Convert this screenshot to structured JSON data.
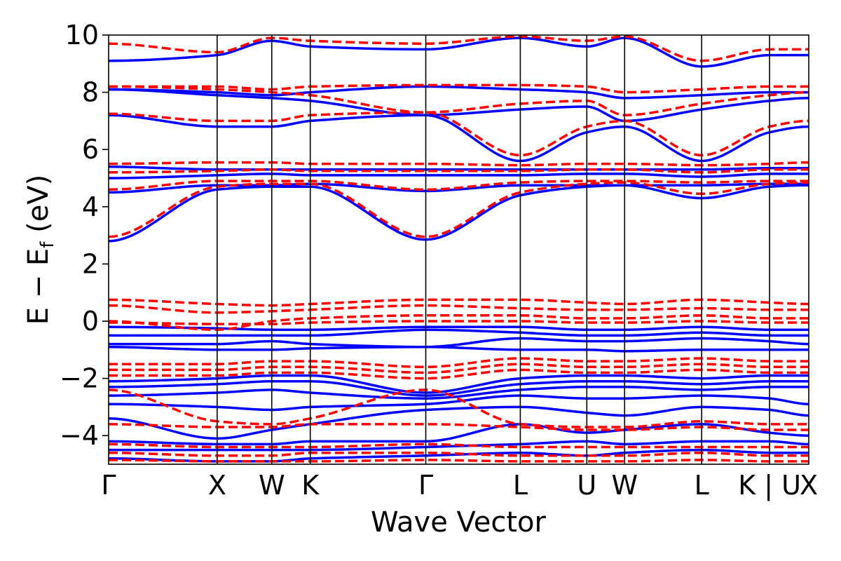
{
  "chart_data": {
    "type": "line",
    "title": "",
    "xlabel": "Wave Vector",
    "ylabel": "E − E",
    "ylabel_subscript": "f",
    "ylabel_unit": " (eV)",
    "ylim": [
      -5,
      10
    ],
    "y_ticks": [
      -4,
      -2,
      0,
      2,
      4,
      6,
      8,
      10
    ],
    "y_tick_labels": [
      "−4",
      "−2",
      "0",
      "2",
      "4",
      "6",
      "8",
      "10"
    ],
    "x_ticks": [
      {
        "label": "Γ",
        "x": 0.0
      },
      {
        "label": "X",
        "x": 0.155
      },
      {
        "label": "W",
        "x": 0.233
      },
      {
        "label": "K",
        "x": 0.288
      },
      {
        "label": "Γ",
        "x": 0.453
      },
      {
        "label": "L",
        "x": 0.588
      },
      {
        "label": "U",
        "x": 0.683
      },
      {
        "label": "W",
        "x": 0.737
      },
      {
        "label": "L",
        "x": 0.847
      },
      {
        "label": "K | U",
        "x": 0.944
      },
      {
        "label": "X",
        "x": 1.0
      }
    ],
    "series": [
      {
        "style": "solid",
        "color": "#0000ff",
        "bands": [
          [
            2.8,
            4.6,
            4.7,
            4.7,
            2.85,
            4.4,
            4.7,
            4.75,
            4.3,
            4.7,
            4.75
          ],
          [
            4.5,
            4.75,
            4.75,
            4.8,
            4.55,
            4.75,
            4.75,
            4.75,
            4.75,
            4.8,
            4.8
          ],
          [
            5.0,
            5.1,
            5.15,
            5.1,
            5.1,
            5.1,
            5.15,
            5.15,
            5.05,
            5.15,
            5.15
          ],
          [
            5.4,
            5.3,
            5.3,
            5.3,
            5.3,
            5.3,
            5.3,
            5.3,
            5.3,
            5.35,
            5.35
          ],
          [
            7.2,
            6.8,
            6.8,
            7.0,
            7.2,
            5.6,
            6.6,
            6.8,
            5.6,
            6.6,
            6.8
          ],
          [
            8.1,
            7.9,
            7.8,
            7.7,
            7.2,
            7.4,
            7.5,
            7.0,
            7.4,
            7.7,
            7.8
          ],
          [
            8.1,
            8.0,
            7.9,
            8.0,
            8.2,
            8.1,
            8.0,
            7.8,
            7.9,
            8.0,
            8.0
          ],
          [
            9.1,
            9.3,
            9.8,
            9.6,
            9.5,
            9.9,
            9.6,
            9.9,
            8.9,
            9.3,
            9.3
          ],
          [
            -0.2,
            -0.25,
            -0.3,
            -0.3,
            -0.2,
            -0.2,
            -0.3,
            -0.3,
            -0.2,
            -0.3,
            -0.3
          ],
          [
            -0.5,
            -0.5,
            -0.5,
            -0.5,
            -0.3,
            -0.4,
            -0.5,
            -0.5,
            -0.4,
            -0.5,
            -0.5
          ],
          [
            -0.8,
            -0.8,
            -0.7,
            -0.8,
            -0.9,
            -0.6,
            -0.7,
            -0.7,
            -0.6,
            -0.7,
            -0.8
          ],
          [
            -0.9,
            -1.0,
            -1.0,
            -0.95,
            -0.9,
            -1.0,
            -1.0,
            -1.05,
            -1.0,
            -1.0,
            -1.0
          ],
          [
            -2.1,
            -2.0,
            -1.9,
            -1.9,
            -2.5,
            -2.0,
            -1.9,
            -1.9,
            -2.0,
            -1.9,
            -1.9
          ],
          [
            -2.3,
            -2.2,
            -2.1,
            -2.1,
            -2.6,
            -2.2,
            -2.1,
            -2.1,
            -2.2,
            -2.1,
            -2.1
          ],
          [
            -2.6,
            -2.5,
            -2.4,
            -2.5,
            -2.7,
            -2.4,
            -2.3,
            -2.3,
            -2.4,
            -2.3,
            -2.3
          ],
          [
            -2.9,
            -3.0,
            -3.1,
            -3.0,
            -2.9,
            -2.6,
            -2.7,
            -2.7,
            -2.6,
            -2.7,
            -2.9
          ],
          [
            -3.4,
            -4.1,
            -3.8,
            -3.6,
            -3.1,
            -3.0,
            -3.2,
            -3.3,
            -3.0,
            -3.1,
            -3.3
          ],
          [
            -4.2,
            -4.3,
            -4.3,
            -4.2,
            -4.2,
            -3.6,
            -3.9,
            -3.8,
            -3.6,
            -3.9,
            -4.0
          ],
          [
            -4.5,
            -4.5,
            -4.5,
            -4.5,
            -4.4,
            -4.3,
            -4.2,
            -4.3,
            -4.2,
            -4.2,
            -4.3
          ],
          [
            -4.8,
            -4.9,
            -4.9,
            -4.8,
            -4.7,
            -4.6,
            -4.7,
            -4.6,
            -4.5,
            -4.6,
            -4.6
          ]
        ]
      },
      {
        "style": "dashed",
        "color": "#ff0000",
        "bands": [
          [
            2.95,
            4.7,
            4.8,
            4.8,
            2.95,
            4.5,
            4.8,
            4.85,
            4.45,
            4.8,
            4.85
          ],
          [
            4.6,
            4.9,
            4.9,
            4.9,
            4.6,
            4.85,
            4.9,
            4.9,
            4.85,
            4.9,
            4.9
          ],
          [
            5.2,
            5.25,
            5.3,
            5.25,
            5.25,
            5.25,
            5.3,
            5.3,
            5.2,
            5.3,
            5.3
          ],
          [
            5.5,
            5.55,
            5.55,
            5.5,
            5.5,
            5.45,
            5.5,
            5.5,
            5.45,
            5.5,
            5.55
          ],
          [
            7.25,
            7.0,
            7.0,
            7.2,
            7.3,
            5.8,
            6.8,
            7.0,
            5.8,
            6.8,
            7.0
          ],
          [
            8.2,
            8.1,
            8.0,
            7.9,
            7.3,
            7.6,
            7.7,
            7.2,
            7.6,
            7.9,
            8.0
          ],
          [
            8.2,
            8.2,
            8.1,
            8.2,
            8.25,
            8.25,
            8.2,
            8.0,
            8.1,
            8.2,
            8.2
          ],
          [
            9.7,
            9.4,
            9.9,
            9.8,
            9.7,
            9.95,
            9.8,
            9.95,
            9.1,
            9.5,
            9.5
          ],
          [
            0.75,
            0.6,
            0.55,
            0.6,
            0.75,
            0.75,
            0.65,
            0.6,
            0.75,
            0.65,
            0.6
          ],
          [
            0.55,
            0.3,
            0.35,
            0.4,
            0.55,
            0.45,
            0.4,
            0.4,
            0.45,
            0.4,
            0.4
          ],
          [
            0.0,
            -0.3,
            0.0,
            0.1,
            0.2,
            0.2,
            0.1,
            0.1,
            0.2,
            0.1,
            0.1
          ],
          [
            -0.05,
            -0.1,
            -0.1,
            -0.05,
            0.0,
            0.0,
            -0.05,
            -0.05,
            0.0,
            -0.05,
            -0.05
          ],
          [
            -1.5,
            -1.5,
            -1.4,
            -1.4,
            -1.6,
            -1.3,
            -1.4,
            -1.4,
            -1.3,
            -1.4,
            -1.4
          ],
          [
            -1.7,
            -1.7,
            -1.6,
            -1.6,
            -1.8,
            -1.5,
            -1.6,
            -1.6,
            -1.5,
            -1.6,
            -1.6
          ],
          [
            -1.9,
            -1.9,
            -1.8,
            -1.8,
            -2.0,
            -1.7,
            -1.8,
            -1.8,
            -1.7,
            -1.8,
            -1.8
          ],
          [
            -2.4,
            -3.5,
            -3.6,
            -3.4,
            -2.4,
            -3.6,
            -3.7,
            -3.7,
            -3.5,
            -3.6,
            -3.6
          ],
          [
            -3.6,
            -3.7,
            -3.7,
            -3.6,
            -3.6,
            -3.7,
            -3.8,
            -3.8,
            -3.7,
            -3.8,
            -3.8
          ],
          [
            -4.3,
            -4.4,
            -4.4,
            -4.4,
            -4.3,
            -4.4,
            -4.4,
            -4.4,
            -4.4,
            -4.4,
            -4.4
          ],
          [
            -4.6,
            -4.7,
            -4.7,
            -4.6,
            -4.6,
            -4.7,
            -4.7,
            -4.7,
            -4.6,
            -4.7,
            -4.7
          ],
          [
            -4.85,
            -4.9,
            -4.9,
            -4.9,
            -4.85,
            -4.9,
            -4.9,
            -4.9,
            -4.85,
            -4.9,
            -4.9
          ]
        ]
      }
    ]
  }
}
